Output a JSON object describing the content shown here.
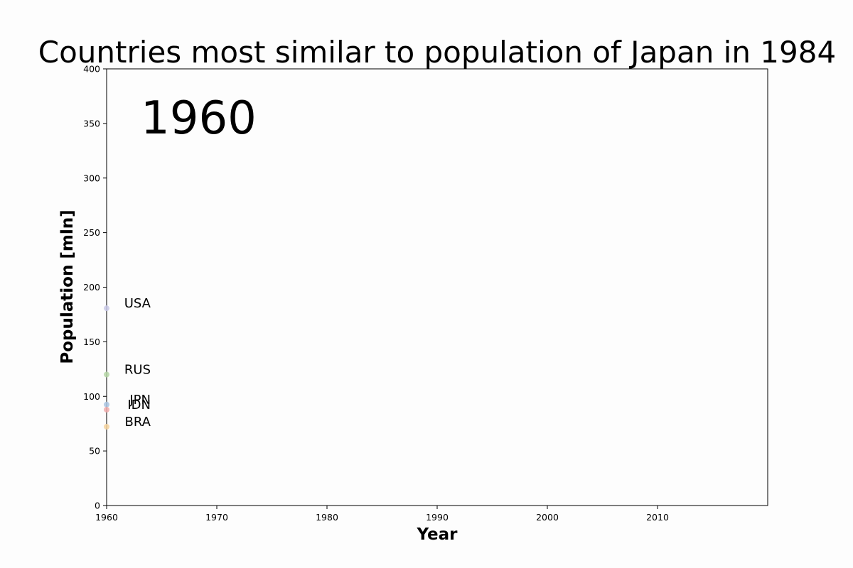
{
  "chart_data": {
    "type": "scatter",
    "title": "Countries most similar to population of Japan in 1984",
    "xlabel": "Year",
    "ylabel": "Population [mln]",
    "current_year": "1960",
    "xlim": [
      1960,
      2020
    ],
    "ylim": [
      0,
      400
    ],
    "x_ticks": [
      1960,
      1970,
      1980,
      1990,
      2000,
      2010
    ],
    "y_ticks": [
      0,
      50,
      100,
      150,
      200,
      250,
      300,
      350,
      400
    ],
    "grid": false,
    "series": [
      {
        "name": "USA",
        "x": [
          1960
        ],
        "y": [
          180.7
        ],
        "color": "#c8c8e6"
      },
      {
        "name": "RUS",
        "x": [
          1960
        ],
        "y": [
          120.0
        ],
        "color": "#b5d6a6"
      },
      {
        "name": "JPN",
        "x": [
          1960
        ],
        "y": [
          92.5
        ],
        "color": "#a9c4e2"
      },
      {
        "name": "IDN",
        "x": [
          1960
        ],
        "y": [
          87.8
        ],
        "color": "#f0aaaa"
      },
      {
        "name": "BRA",
        "x": [
          1960
        ],
        "y": [
          72.2
        ],
        "color": "#f5d29c"
      }
    ]
  }
}
